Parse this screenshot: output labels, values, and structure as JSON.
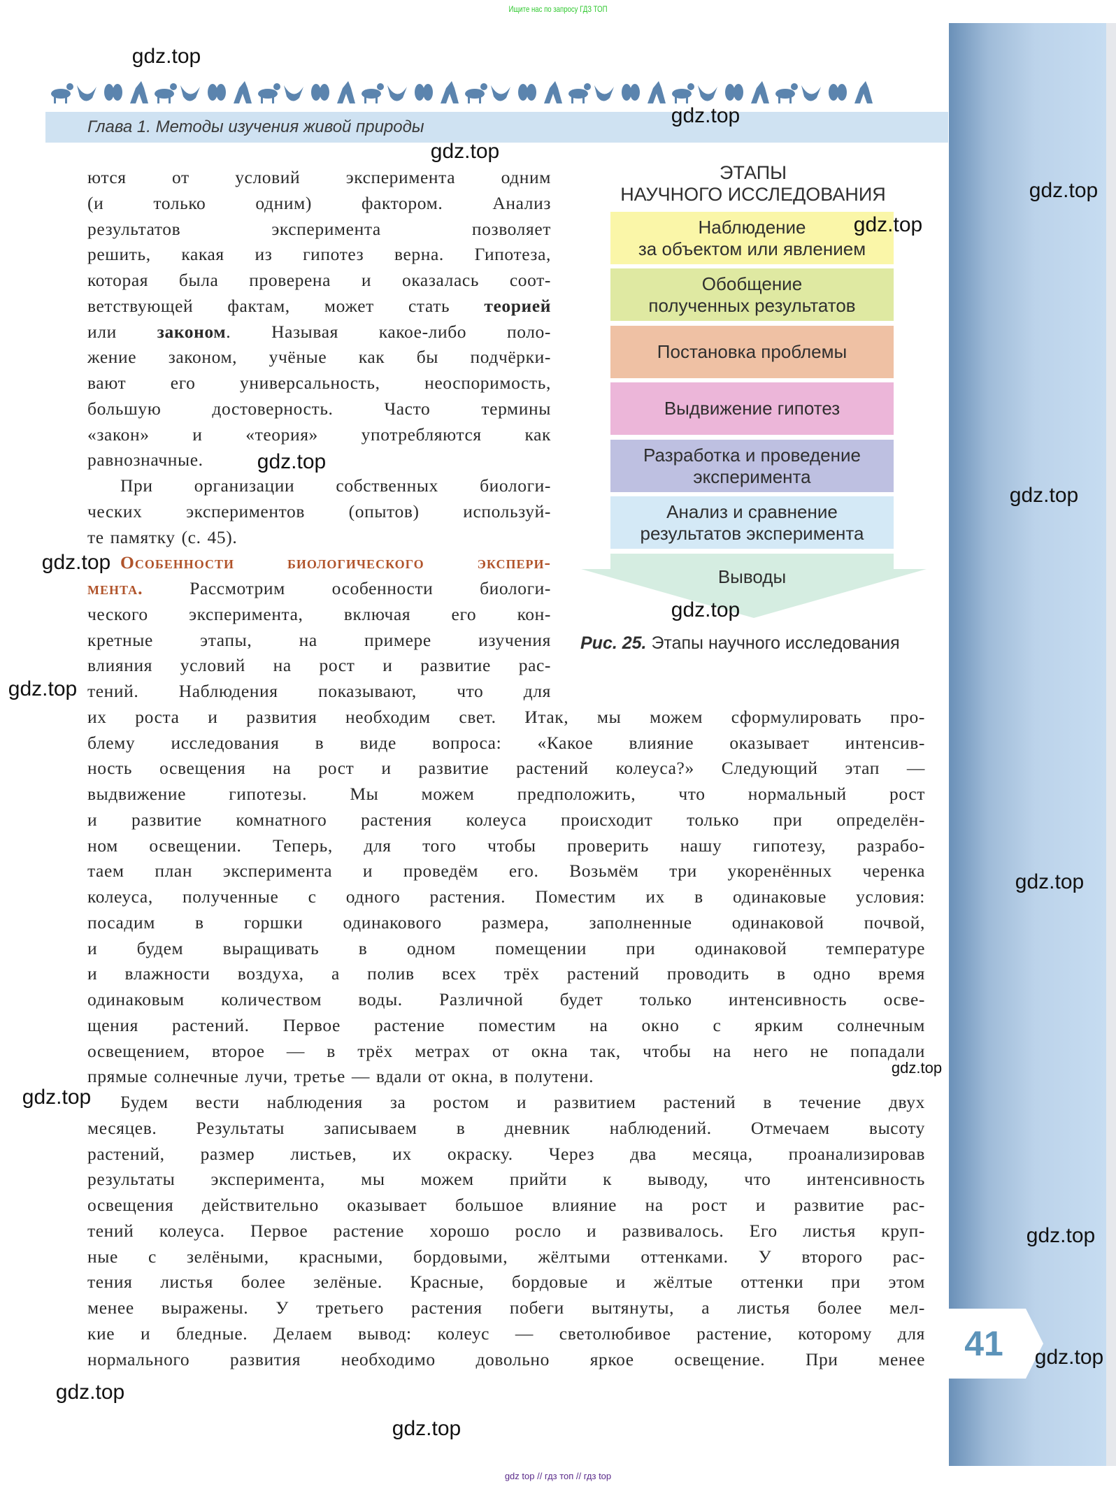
{
  "top_note": "Ищите нас по запросу ГДЗ ТОП",
  "chapter_title": "Глава 1. Методы изучения живой природы",
  "page_number": "41",
  "colors": {
    "accent": "#5c93b9",
    "band": "#cfe2f2",
    "heading": "#b0532a",
    "sidebar": "#6a90b8"
  },
  "diagram": {
    "title_line1": "ЭТАПЫ",
    "title_line2": "НАУЧНОГО ИССЛЕДОВАНИЯ",
    "steps": [
      {
        "label": "Наблюдение\nза объектом или явлением",
        "color": "#faf6a8"
      },
      {
        "label": "Обобщение\nполученных результатов",
        "color": "#dfe9a2"
      },
      {
        "label": "Постановка проблемы",
        "color": "#efc1a4"
      },
      {
        "label": "Выдвижение гипотез",
        "color": "#ecb6d9"
      },
      {
        "label": "Разработка и проведение\nэксперимента",
        "color": "#bec0e1"
      },
      {
        "label": "Анализ и сравнение\nрезультатов эксперимента",
        "color": "#d4e9f6"
      }
    ],
    "conclusion": {
      "label": "Выводы",
      "color": "#d5ede1"
    },
    "caption_fig": "Рис. 25.",
    "caption_text": " Этапы научного исследования"
  },
  "left_lines": [
    {
      "segs": [
        {
          "t": "ются от условий эксперимента одним"
        }
      ]
    },
    {
      "segs": [
        {
          "t": "(и только одним) фактором. Анализ"
        }
      ]
    },
    {
      "segs": [
        {
          "t": "результатов эксперимента позволяет"
        }
      ]
    },
    {
      "segs": [
        {
          "t": "решить, какая из гипотез верна. Гипотеза,"
        }
      ]
    },
    {
      "segs": [
        {
          "t": "которая была проверена и оказалась соот-"
        }
      ]
    },
    {
      "segs": [
        {
          "t": "ветствующей фактам, может стать "
        },
        {
          "t": "теорией",
          "s": "b"
        }
      ]
    },
    {
      "segs": [
        {
          "t": "или "
        },
        {
          "t": "законом",
          "s": "b"
        },
        {
          "t": ". Называя какое-либо поло-"
        }
      ]
    },
    {
      "segs": [
        {
          "t": "жение законом, учёные как бы подчёрки-"
        }
      ]
    },
    {
      "segs": [
        {
          "t": "вают его универсальность, неоспоримость,"
        }
      ]
    },
    {
      "segs": [
        {
          "t": "большую достоверность. Часто термины"
        }
      ]
    },
    {
      "segs": [
        {
          "t": "«закон» и «теория» употребляются как"
        }
      ]
    },
    {
      "segs": [
        {
          "t": "равнозначные."
        }
      ],
      "end": true
    },
    {
      "segs": [
        {
          "t": "При организации собственных биологи-"
        }
      ],
      "indent": true
    },
    {
      "segs": [
        {
          "t": "ческих экспериментов (опытов) используй-"
        }
      ]
    },
    {
      "segs": [
        {
          "t": "те памятку (с. 45)."
        }
      ],
      "end": true
    },
    {
      "segs": [
        {
          "t": "Особенности биологического экспери-",
          "s": "h"
        }
      ],
      "indent": true
    },
    {
      "segs": [
        {
          "t": "мента.",
          "s": "h"
        },
        {
          "t": " Рассмотрим особенности биологи-"
        }
      ]
    },
    {
      "segs": [
        {
          "t": "ческого эксперимента, включая его кон-"
        }
      ]
    },
    {
      "segs": [
        {
          "t": "кретные этапы, на примере изучения"
        }
      ]
    },
    {
      "segs": [
        {
          "t": "влияния условий на рост и развитие рас-"
        }
      ]
    },
    {
      "segs": [
        {
          "t": "тений. Наблюдения показывают, что для"
        }
      ]
    }
  ],
  "full_lines": [
    {
      "segs": [
        {
          "t": "их роста и развития необходим свет. Итак, мы можем сформулировать про-"
        }
      ]
    },
    {
      "segs": [
        {
          "t": "блему исследования в виде вопроса: «Какое влияние оказывает интенсив-"
        }
      ]
    },
    {
      "segs": [
        {
          "t": "ность освещения на рост и развитие растений колеуса?» Следующий этап —"
        }
      ]
    },
    {
      "segs": [
        {
          "t": "выдвижение гипотезы. Мы можем предположить, что нормальный рост"
        }
      ]
    },
    {
      "segs": [
        {
          "t": "и развитие комнатного растения колеуса происходит только при определён-"
        }
      ]
    },
    {
      "segs": [
        {
          "t": "ном освещении. Теперь, для того чтобы проверить нашу гипотезу, разрабо-"
        }
      ]
    },
    {
      "segs": [
        {
          "t": "таем план эксперимента и проведём его. Возьмём три укоренённых черенка"
        }
      ]
    },
    {
      "segs": [
        {
          "t": "колеуса, полученные с одного растения. Поместим их в одинаковые условия:"
        }
      ]
    },
    {
      "segs": [
        {
          "t": "посадим в горшки одинакового размера, заполненные одинаковой почвой,"
        }
      ]
    },
    {
      "segs": [
        {
          "t": "и будем выращивать в одном помещении при одинаковой температуре"
        }
      ]
    },
    {
      "segs": [
        {
          "t": "и влажности воздуха, а полив всех трёх растений проводить в одно время"
        }
      ]
    },
    {
      "segs": [
        {
          "t": "одинаковым количеством воды. Различной будет только интенсивность осве-"
        }
      ]
    },
    {
      "segs": [
        {
          "t": "щения растений. Первое растение поместим на окно с ярким солнечным"
        }
      ]
    },
    {
      "segs": [
        {
          "t": "освещением, второе — в трёх метрах от окна так, чтобы на него не попадали"
        }
      ]
    },
    {
      "segs": [
        {
          "t": "прямые солнечные лучи, третье — вдали от окна, в полутени."
        }
      ],
      "end": true
    },
    {
      "segs": [
        {
          "t": "Будем вести наблюдения за ростом и развитием растений в течение двух"
        }
      ],
      "indent": true
    },
    {
      "segs": [
        {
          "t": "месяцев. Результаты записываем в дневник наблюдений. Отмечаем высоту"
        }
      ]
    },
    {
      "segs": [
        {
          "t": "растений, размер листьев, их окраску. Через два месяца, проанализировав"
        }
      ]
    },
    {
      "segs": [
        {
          "t": "результаты эксперимента, мы можем прийти к выводу, что интенсивность"
        }
      ]
    },
    {
      "segs": [
        {
          "t": "освещения действительно оказывает большое влияние на рост и развитие рас-"
        }
      ]
    },
    {
      "segs": [
        {
          "t": "тений колеуса. Первое растение хорошо росло и развивалось. Его листья круп-"
        }
      ]
    },
    {
      "segs": [
        {
          "t": "ные с зелёными, красными, бордовыми, жёлтыми оттенками. У второго рас-"
        }
      ]
    },
    {
      "segs": [
        {
          "t": "тения листья более зелёные. Красные, бордовые и жёлтые оттенки при этом"
        }
      ]
    },
    {
      "segs": [
        {
          "t": "менее выражены. У третьего растения побеги вытянуты, а листья более мел-"
        }
      ]
    },
    {
      "segs": [
        {
          "t": "кие и бледные. Делаем вывод: колеус — светолюбивое растение, которому для"
        }
      ]
    },
    {
      "segs": [
        {
          "t": "нормального развития необходимо довольно яркое освещение. При менее"
        }
      ]
    }
  ],
  "watermark": "gdz.top",
  "footer": "gdz top  //  гдз топ  //  гдз top"
}
